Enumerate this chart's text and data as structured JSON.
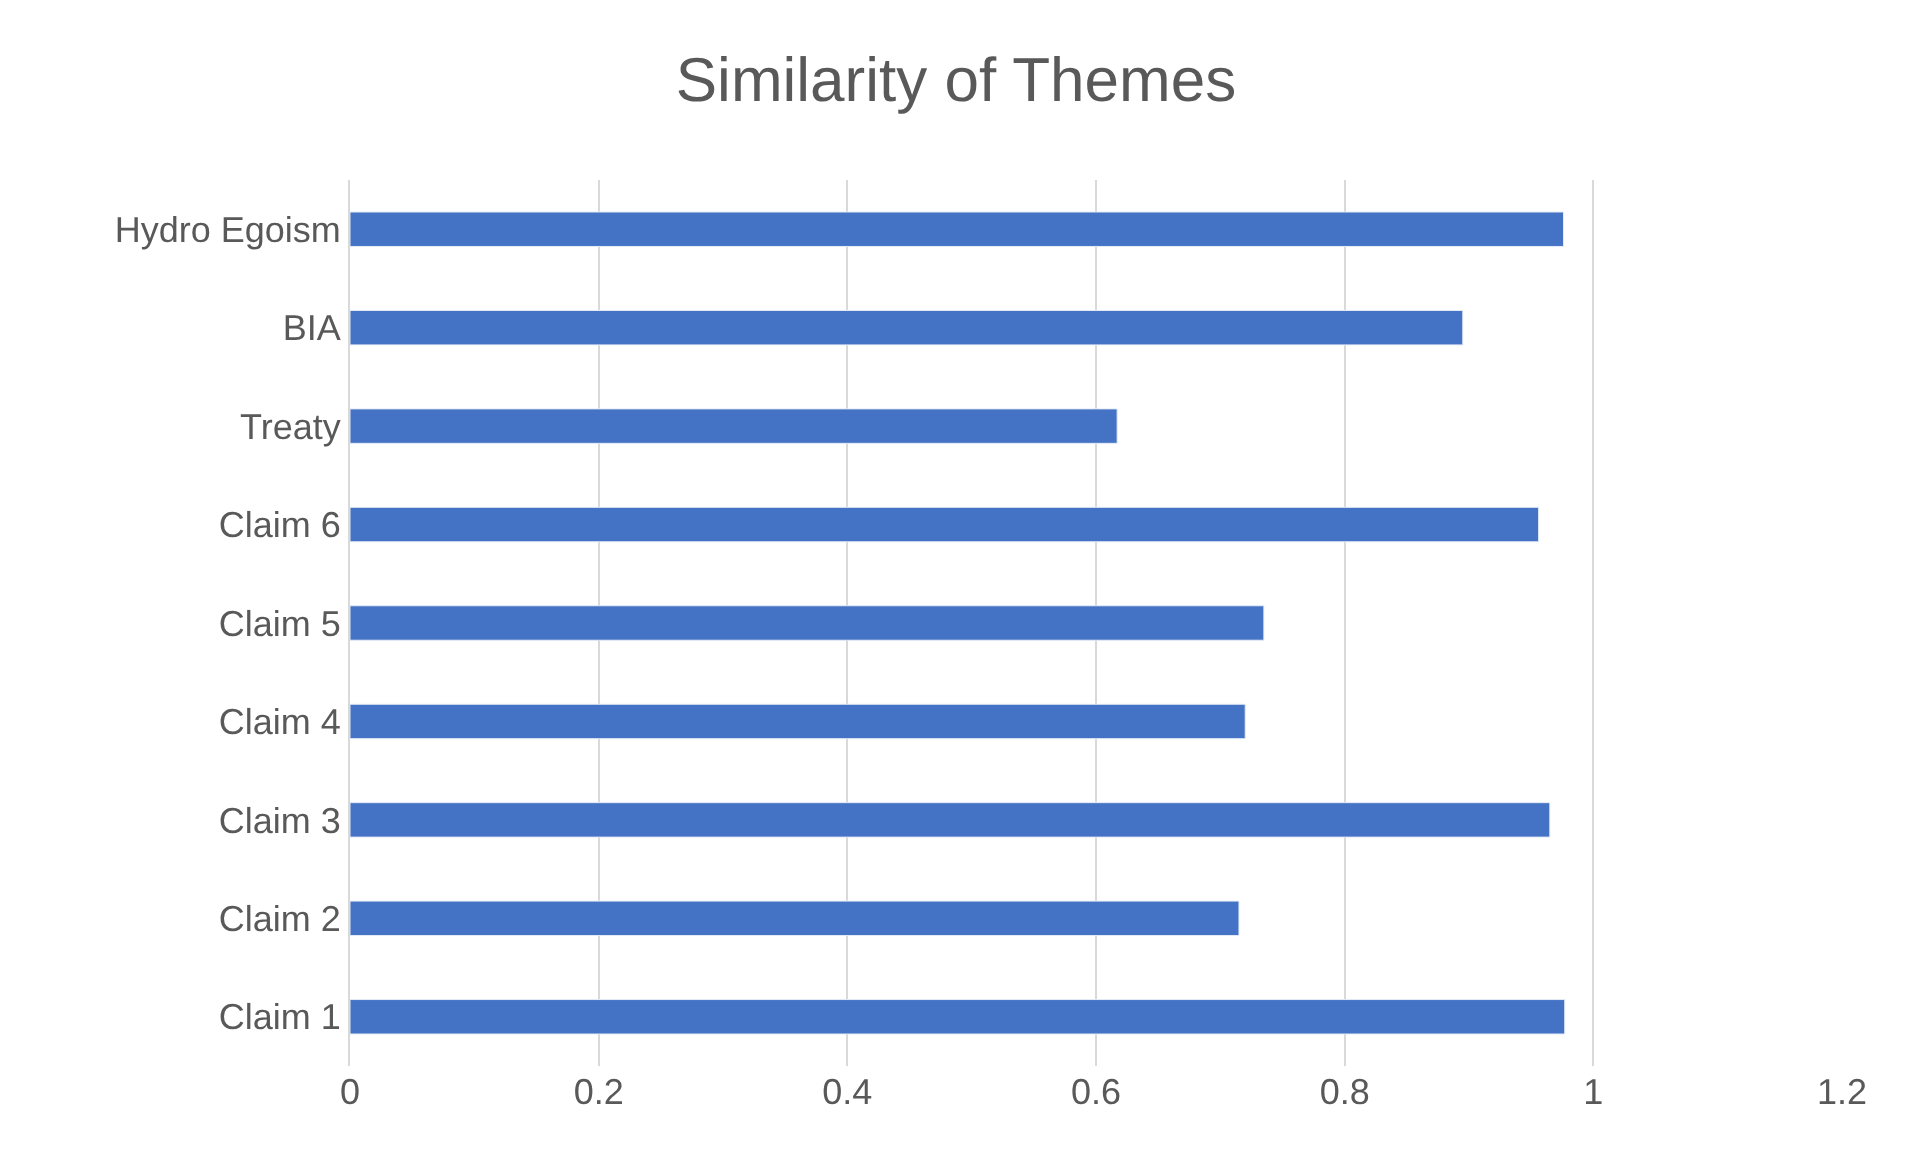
{
  "chart_data": {
    "type": "bar",
    "orientation": "horizontal",
    "title": "Similarity of Themes",
    "categories": [
      "Hydro Egoism",
      "BIA",
      "Treaty",
      "Claim 6",
      "Claim 5",
      "Claim 4",
      "Claim 3",
      "Claim 2",
      "Claim 1"
    ],
    "values": [
      0.976,
      0.895,
      0.617,
      0.956,
      0.735,
      0.72,
      0.965,
      0.715,
      0.977
    ],
    "color": "#4472c4",
    "xlim": [
      0,
      1.2
    ],
    "xticks": [
      0,
      0.2,
      0.4,
      0.6,
      0.8,
      1,
      1.2
    ],
    "grid": "x",
    "legend": false
  }
}
